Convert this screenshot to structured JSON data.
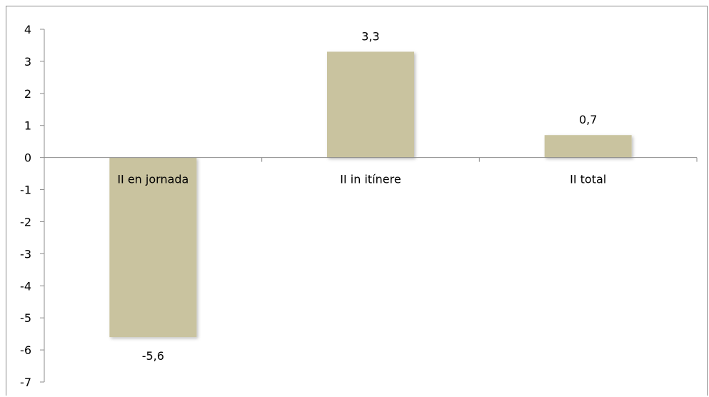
{
  "chart_data": {
    "type": "bar",
    "categories": [
      "II en jornada",
      "II in itínere",
      "II total"
    ],
    "values": [
      -5.6,
      3.3,
      0.7
    ],
    "data_labels": [
      "-5,6",
      "3,3",
      "0,7"
    ],
    "ylim": [
      -7,
      4
    ],
    "yticks": [
      4,
      3,
      2,
      1,
      0,
      -1,
      -2,
      -3,
      -4,
      -5,
      -6,
      -7
    ],
    "ytick_labels": [
      "4",
      "3",
      "2",
      "1",
      "0",
      "-1",
      "-2",
      "-3",
      "-4",
      "-5",
      "-6",
      "-7"
    ],
    "grid": false,
    "legend": "none",
    "bar_color": "#c9c39f",
    "axis_color": "#8c8c8c"
  }
}
